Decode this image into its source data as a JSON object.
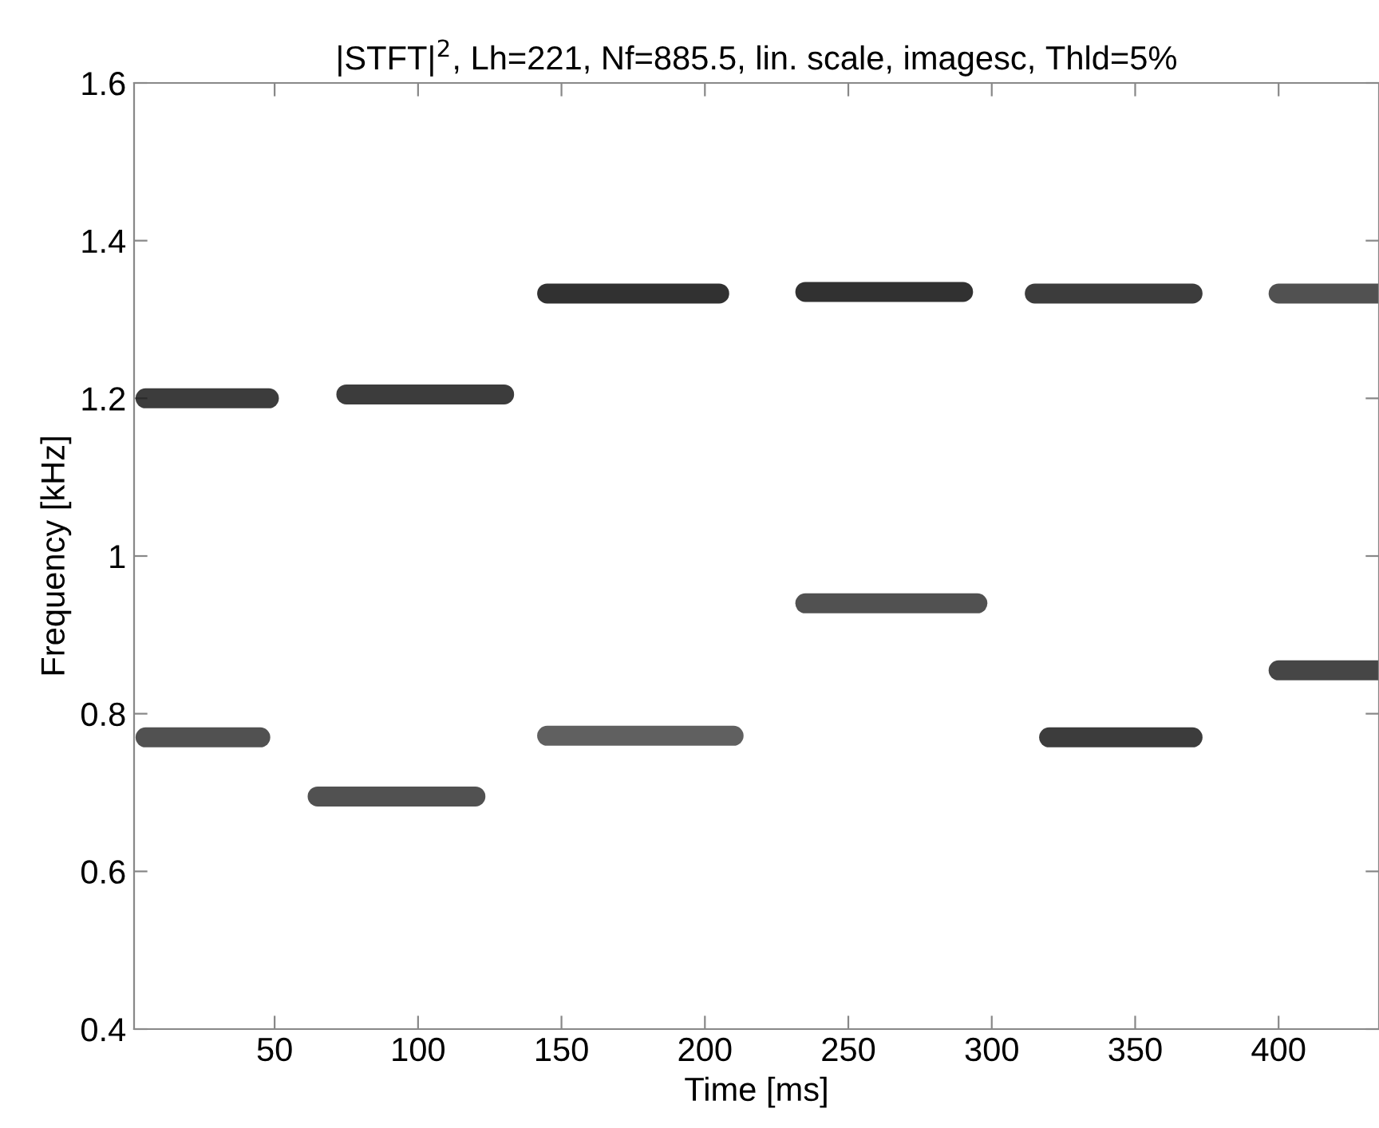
{
  "chart_data": {
    "type": "line",
    "title": "|STFT|$^{2}$, Lh=221, Nf=885.5, lin. scale, imagesc, Thld=5%",
    "xlabel": "Time [ms]",
    "ylabel": "Frequency [kHz]",
    "xlim": [
      1,
      435
    ],
    "ylim": [
      0.4,
      1.6
    ],
    "xticks": [
      50,
      100,
      150,
      200,
      250,
      300,
      350,
      400
    ],
    "yticks": [
      0.4,
      0.6,
      0.8,
      1,
      1.2,
      1.4,
      1.6
    ],
    "grid": false,
    "marker": "none",
    "line_style": "solid",
    "series": [
      {
        "color": "#1a1a1a",
        "x": [
          5,
          48
        ],
        "values": [
          1.2,
          1.2
        ]
      },
      {
        "color": "#1a1a1a",
        "x": [
          75,
          130
        ],
        "values": [
          1.205,
          1.205
        ]
      },
      {
        "color": "#333333",
        "x": [
          5,
          45
        ],
        "values": [
          0.77,
          0.77
        ]
      },
      {
        "color": "#333333",
        "x": [
          65,
          120
        ],
        "values": [
          0.695,
          0.695
        ]
      },
      {
        "color": "#0d0d0d",
        "x": [
          145,
          205
        ],
        "values": [
          1.333,
          1.333
        ]
      },
      {
        "color": "#0d0d0d",
        "x": [
          235,
          290
        ],
        "values": [
          1.335,
          1.335
        ]
      },
      {
        "color": "#1a1a1a",
        "x": [
          315,
          370
        ],
        "values": [
          1.333,
          1.333
        ]
      },
      {
        "color": "#333333",
        "x": [
          400,
          435
        ],
        "values": [
          1.333,
          1.333
        ]
      },
      {
        "color": "#444444",
        "x": [
          145,
          210
        ],
        "values": [
          0.772,
          0.772
        ]
      },
      {
        "color": "#333333",
        "x": [
          235,
          295
        ],
        "values": [
          0.94,
          0.94
        ]
      },
      {
        "color": "#1a1a1a",
        "x": [
          320,
          370
        ],
        "values": [
          0.77,
          0.77
        ]
      },
      {
        "color": "#262626",
        "x": [
          400,
          435
        ],
        "values": [
          0.855,
          0.855
        ]
      }
    ]
  }
}
